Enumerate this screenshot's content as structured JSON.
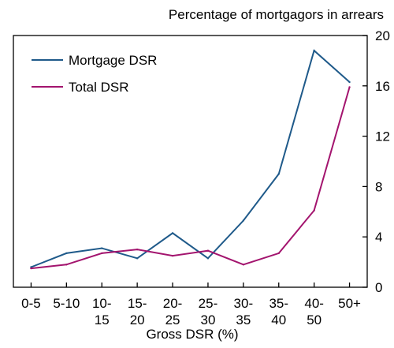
{
  "chart_data": {
    "type": "line",
    "ylabel": "Percentage of mortgagors in arrears",
    "xlabel": "Gross DSR  (%)",
    "categories": [
      [
        "0-5"
      ],
      [
        "5-10"
      ],
      [
        "10-",
        "15"
      ],
      [
        "15-",
        "20"
      ],
      [
        "20-",
        "25"
      ],
      [
        "25-",
        "30"
      ],
      [
        "30-",
        "35"
      ],
      [
        "35-",
        "40"
      ],
      [
        "40-",
        "50"
      ],
      [
        "50+"
      ]
    ],
    "ylim": [
      0,
      20
    ],
    "yticks": [
      0,
      4,
      8,
      12,
      16,
      20
    ],
    "y_axis_side": "right",
    "grid": false,
    "legend_position": "top-left",
    "series": [
      {
        "name": "Mortgage DSR",
        "color": "#1f5a8a",
        "values": [
          1.6,
          2.7,
          3.1,
          2.3,
          4.3,
          2.3,
          5.3,
          9.0,
          18.8,
          16.3
        ]
      },
      {
        "name": "Total DSR",
        "color": "#a3146e",
        "values": [
          1.5,
          1.8,
          2.7,
          3.0,
          2.5,
          2.9,
          1.8,
          2.7,
          6.1,
          15.9
        ]
      }
    ]
  }
}
